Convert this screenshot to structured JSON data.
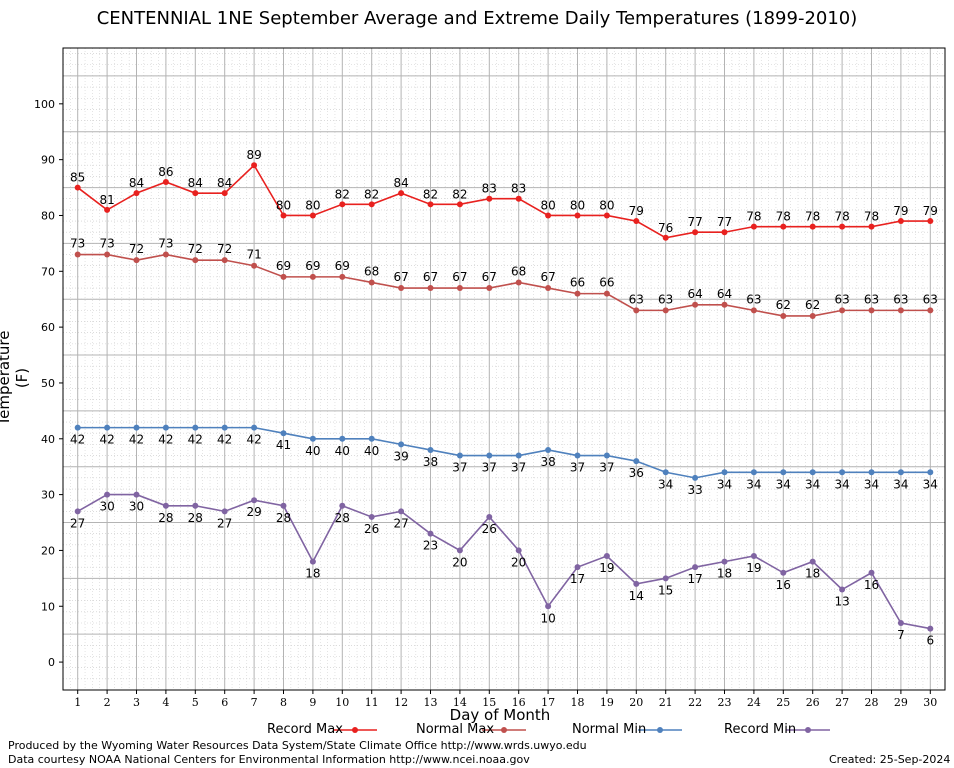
{
  "chart_data": {
    "type": "line",
    "title": "CENTENNIAL 1NE September Average and Extreme Daily Temperatures (1899-2010)",
    "xlabel": "Day of Month",
    "ylabel": "Temperature (F)",
    "x": [
      1,
      2,
      3,
      4,
      5,
      6,
      7,
      8,
      9,
      10,
      11,
      12,
      13,
      14,
      15,
      16,
      17,
      18,
      19,
      20,
      21,
      22,
      23,
      24,
      25,
      26,
      27,
      28,
      29,
      30
    ],
    "xlim": [
      0.5,
      30.5
    ],
    "ylim": [
      -5,
      110
    ],
    "yticks": [
      0,
      10,
      20,
      30,
      40,
      50,
      60,
      70,
      80,
      90,
      100
    ],
    "grid": true,
    "legend_position": "bottom",
    "series": [
      {
        "name": "Record Max",
        "color": "#e8211f",
        "values": [
          85,
          81,
          84,
          86,
          84,
          84,
          89,
          80,
          80,
          82,
          82,
          84,
          82,
          82,
          83,
          83,
          80,
          80,
          80,
          79,
          76,
          77,
          77,
          78,
          78,
          78,
          78,
          78,
          79,
          79
        ]
      },
      {
        "name": "Normal Max",
        "color": "#c0504d",
        "values": [
          73,
          73,
          72,
          73,
          72,
          72,
          71,
          69,
          69,
          69,
          68,
          67,
          67,
          67,
          67,
          68,
          67,
          66,
          66,
          63,
          63,
          64,
          64,
          63,
          62,
          62,
          63,
          63,
          63,
          63
        ]
      },
      {
        "name": "Normal Min",
        "color": "#4f81bd",
        "values": [
          42,
          42,
          42,
          42,
          42,
          42,
          42,
          41,
          40,
          40,
          40,
          39,
          38,
          37,
          37,
          37,
          38,
          37,
          37,
          36,
          34,
          33,
          34,
          34,
          34,
          34,
          34,
          34,
          34,
          34
        ]
      },
      {
        "name": "Record Min",
        "color": "#8064a2",
        "values": [
          27,
          30,
          30,
          28,
          28,
          27,
          29,
          28,
          18,
          28,
          26,
          27,
          23,
          20,
          26,
          20,
          10,
          17,
          19,
          14,
          15,
          17,
          18,
          19,
          16,
          18,
          13,
          16,
          7,
          6
        ]
      }
    ]
  },
  "footer": {
    "line1": "Produced by the Wyoming Water Resources Data System/State Climate Office http://www.wrds.uwyo.edu",
    "line2": "Data courtesy NOAA National Centers for Environmental Information http://www.ncei.noaa.gov",
    "created": "Created:  25-Sep-2024"
  }
}
